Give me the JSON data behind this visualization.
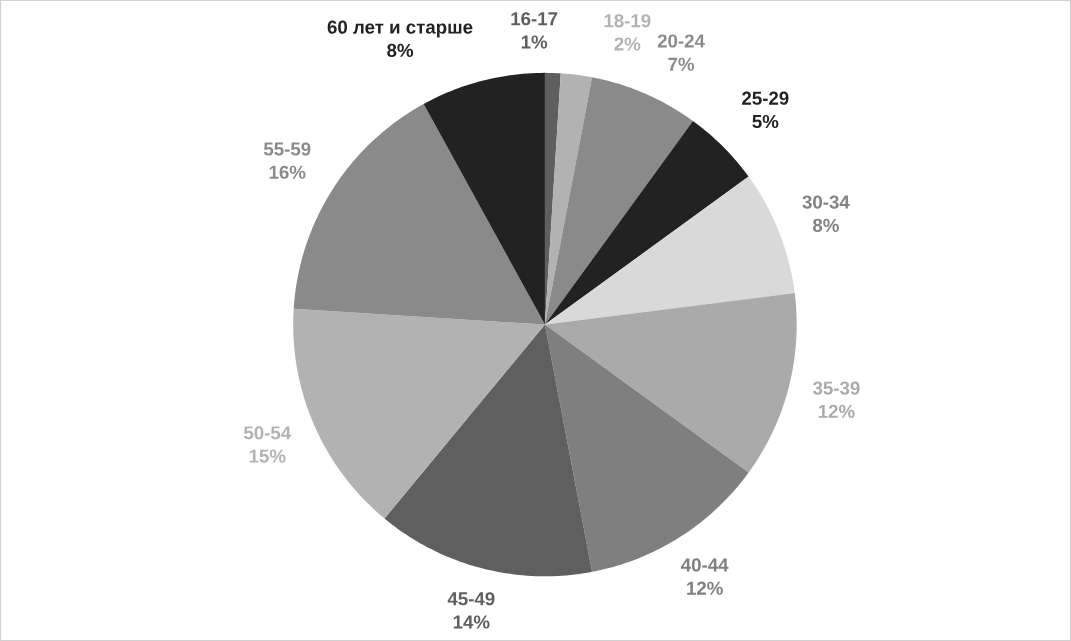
{
  "chart_data": {
    "type": "pie",
    "categories": [
      "16-17",
      "18-19",
      "20-24",
      "25-29",
      "30-34",
      "35-39",
      "40-44",
      "45-49",
      "50-54",
      "55-59",
      "60 лет и старше"
    ],
    "values": [
      1,
      2,
      7,
      5,
      8,
      12,
      12,
      14,
      15,
      16,
      8
    ],
    "value_labels": [
      "1%",
      "2%",
      "7%",
      "5%",
      "8%",
      "12%",
      "12%",
      "14%",
      "15%",
      "16%",
      "8%"
    ],
    "colors": [
      "#5f5f5f",
      "#b2b2b2",
      "#8a8a8a",
      "#222222",
      "#d9d9d9",
      "#aaaaaa",
      "#7f7f7f",
      "#5f5f5f",
      "#b2b2b2",
      "#8a8a8a",
      "#222222"
    ]
  }
}
